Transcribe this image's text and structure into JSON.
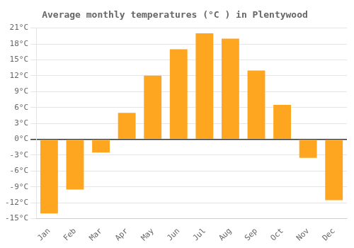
{
  "chart_data": {
    "type": "bar",
    "title": "Average monthly temperatures (°C ) in Plentywood",
    "categories": [
      "Jan",
      "Feb",
      "Mar",
      "Apr",
      "May",
      "Jun",
      "Jul",
      "Aug",
      "Sep",
      "Oct",
      "Nov",
      "Dec"
    ],
    "values": [
      -14,
      -9.5,
      -2.5,
      5,
      12,
      17,
      20,
      19,
      13,
      6.5,
      -3.5,
      -11.5
    ],
    "color": "#FFA620",
    "ylim": [
      -15,
      21
    ],
    "yticks": [
      {
        "value": -15,
        "label": "-15°C"
      },
      {
        "value": -12,
        "label": "-12°C"
      },
      {
        "value": -9,
        "label": "-9°C"
      },
      {
        "value": -6,
        "label": "-6°C"
      },
      {
        "value": -3,
        "label": "-3°C"
      },
      {
        "value": 0,
        "label": "0°C"
      },
      {
        "value": 3,
        "label": "3°C"
      },
      {
        "value": 6,
        "label": "6°C"
      },
      {
        "value": 9,
        "label": "9°C"
      },
      {
        "value": 12,
        "label": "12°C"
      },
      {
        "value": 15,
        "label": "15°C"
      },
      {
        "value": 18,
        "label": "18°C"
      },
      {
        "value": 21,
        "label": "21°C"
      }
    ],
    "grid": true
  }
}
